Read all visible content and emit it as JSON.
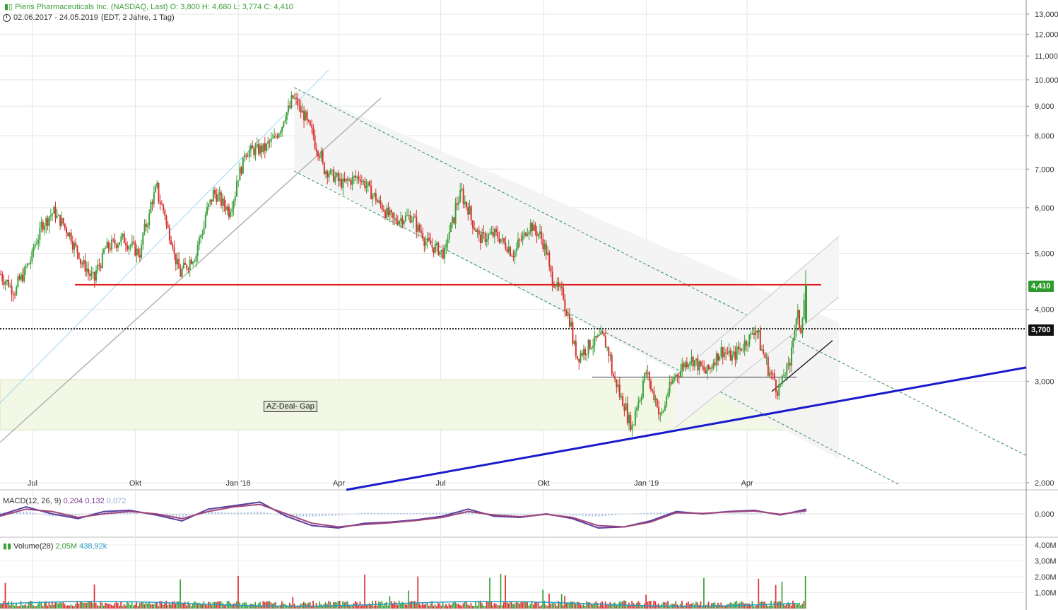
{
  "header": {
    "title": "Pieris Pharmaceuticals Inc. (NASDAQ, Last)",
    "ohlc": "O: 3,800  H: 4,680  L: 3,774  C: 4,410",
    "range": "02.06.2017 - 24.05.2019",
    "range_info": "(EDT, 2 Jahre, 1 Tag)"
  },
  "badges": {
    "last": "4,410",
    "level": "3,700"
  },
  "annotation": {
    "gap": "AZ-Deal- Gap"
  },
  "macd_label": {
    "name": "MACD(12, 26, 9)",
    "macd": "0,204",
    "signal": "0,132",
    "hist": "0,072"
  },
  "volume_label": {
    "name": "Volume(28)",
    "value": "2,05M",
    "avg": "438,92k"
  },
  "colors": {
    "up": "#3aa13a",
    "down": "#d93030",
    "resistance": "#e02020",
    "support": "#1a1acc",
    "macd": "#7b3c8a",
    "volume_avg": "#2a9bc2"
  },
  "chart_data": [
    {
      "type": "candlestick",
      "scale": "log",
      "ylim": [
        2.0,
        13.0
      ],
      "y_ticks": [
        "2,000",
        "3,000",
        "4,000",
        "5,000",
        "6,000",
        "7,000",
        "8,000",
        "9,000",
        "10,000",
        "11,000",
        "12,000",
        "13,000"
      ],
      "x_tick_labels": [
        "Jul",
        "Okt",
        "Jan '18",
        "Apr",
        "Jul",
        "Okt",
        "Jan '19",
        "Apr"
      ],
      "x_range": [
        "2017-06-02",
        "2019-05-24"
      ],
      "close_path": [
        [
          "2017-06-02",
          4.6
        ],
        [
          "2017-06-15",
          4.3
        ],
        [
          "2017-06-28",
          4.8
        ],
        [
          "2017-07-10",
          5.6
        ],
        [
          "2017-07-20",
          5.9
        ],
        [
          "2017-08-01",
          5.5
        ],
        [
          "2017-08-15",
          4.8
        ],
        [
          "2017-08-25",
          4.5
        ],
        [
          "2017-09-05",
          5.1
        ],
        [
          "2017-09-20",
          5.3
        ],
        [
          "2017-10-05",
          5.0
        ],
        [
          "2017-10-20",
          6.5
        ],
        [
          "2017-11-01",
          5.4
        ],
        [
          "2017-11-10",
          4.6
        ],
        [
          "2017-11-25",
          5.0
        ],
        [
          "2017-12-10",
          6.4
        ],
        [
          "2017-12-25",
          5.9
        ],
        [
          "2018-01-08",
          7.5
        ],
        [
          "2018-01-25",
          7.6
        ],
        [
          "2018-02-05",
          8.0
        ],
        [
          "2018-02-20",
          9.3
        ],
        [
          "2018-03-05",
          8.4
        ],
        [
          "2018-03-20",
          7.0
        ],
        [
          "2018-04-05",
          6.6
        ],
        [
          "2018-04-20",
          6.8
        ],
        [
          "2018-05-05",
          6.2
        ],
        [
          "2018-05-20",
          5.7
        ],
        [
          "2018-06-05",
          5.8
        ],
        [
          "2018-06-20",
          5.2
        ],
        [
          "2018-07-05",
          5.0
        ],
        [
          "2018-07-20",
          6.4
        ],
        [
          "2018-08-05",
          5.3
        ],
        [
          "2018-08-20",
          5.4
        ],
        [
          "2018-09-05",
          5.0
        ],
        [
          "2018-09-20",
          5.6
        ],
        [
          "2018-10-01",
          5.3
        ],
        [
          "2018-10-10",
          4.5
        ],
        [
          "2018-10-20",
          4.2
        ],
        [
          "2018-11-01",
          3.3
        ],
        [
          "2018-11-15",
          3.5
        ],
        [
          "2018-11-25",
          3.6
        ],
        [
          "2018-12-05",
          3.0
        ],
        [
          "2018-12-20",
          2.5
        ],
        [
          "2019-01-02",
          3.1
        ],
        [
          "2019-01-15",
          2.6
        ],
        [
          "2019-01-25",
          3.0
        ],
        [
          "2019-02-10",
          3.3
        ],
        [
          "2019-02-25",
          3.1
        ],
        [
          "2019-03-10",
          3.4
        ],
        [
          "2019-03-20",
          3.3
        ],
        [
          "2019-04-01",
          3.5
        ],
        [
          "2019-04-10",
          3.7
        ],
        [
          "2019-04-20",
          3.2
        ],
        [
          "2019-04-30",
          2.9
        ],
        [
          "2019-05-10",
          3.2
        ],
        [
          "2019-05-17",
          3.9
        ],
        [
          "2019-05-21",
          3.7
        ],
        [
          "2019-05-24",
          4.41
        ]
      ],
      "horizontal_levels": [
        {
          "value": 4.41,
          "from": "2017-08-10",
          "to": "2019-05-24",
          "color": "#e02020"
        },
        {
          "value": 3.7,
          "from": "2017-06-02",
          "to": "2019-05-24",
          "style": "dotted"
        },
        {
          "value": 3.05,
          "from": "2018-11-10",
          "to": "2019-05-01",
          "color": "#333333"
        }
      ],
      "last": 4.41
    },
    {
      "type": "line",
      "name": "MACD(12, 26, 9)",
      "ylim": [
        -0.9,
        0.9
      ],
      "y_ticks": [
        "0,000"
      ],
      "series": [
        {
          "name": "MACD",
          "values": [
            -0.05,
            0.3,
            0.0,
            -0.2,
            0.1,
            0.15,
            -0.05,
            -0.3,
            0.2,
            0.35,
            0.5,
            -0.1,
            -0.5,
            -0.6,
            -0.4,
            -0.35,
            -0.25,
            -0.1,
            0.2,
            -0.1,
            -0.15,
            0.0,
            -0.2,
            -0.6,
            -0.55,
            -0.3,
            0.1,
            0.0,
            0.1,
            0.15,
            -0.05,
            0.2
          ]
        },
        {
          "name": "Signal",
          "values": [
            -0.1,
            0.2,
            0.1,
            -0.15,
            0.0,
            0.1,
            0.0,
            -0.2,
            0.1,
            0.3,
            0.4,
            0.0,
            -0.4,
            -0.55,
            -0.45,
            -0.38,
            -0.28,
            -0.15,
            0.1,
            -0.05,
            -0.12,
            -0.02,
            -0.15,
            -0.5,
            -0.55,
            -0.35,
            0.05,
            0.02,
            0.08,
            0.12,
            -0.02,
            0.13
          ]
        }
      ]
    },
    {
      "type": "bar",
      "name": "Volume(28)",
      "ylim": [
        0,
        4.4
      ],
      "y_ticks": [
        "1,00M",
        "2,00M",
        "3,00M",
        "4,00M"
      ],
      "last": 2.05,
      "avg_last": 0.43892
    }
  ]
}
